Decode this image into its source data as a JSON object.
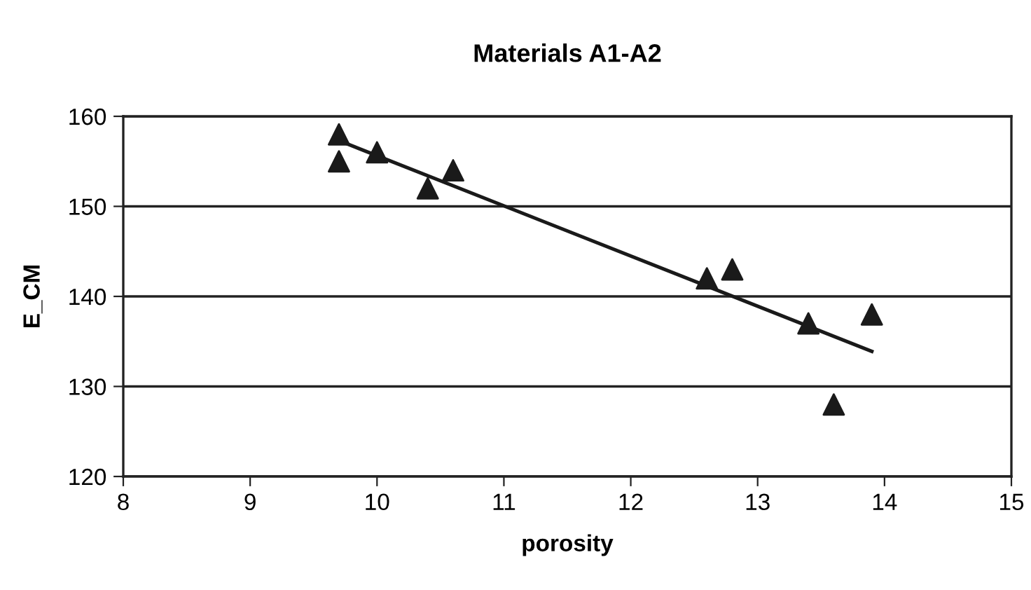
{
  "chart_data": {
    "type": "scatter",
    "title": "Materials A1-A2",
    "xlabel": "porosity",
    "ylabel": "E_CM",
    "xlim": [
      8,
      15
    ],
    "xticks": [
      8,
      9,
      10,
      11,
      12,
      13,
      14,
      15
    ],
    "ylim": [
      120,
      160
    ],
    "yticks": [
      120,
      130,
      140,
      150,
      160
    ],
    "grid": "y",
    "series": [
      {
        "color": "#1a1a1a",
        "marker": "triangle",
        "x": [
          9.7,
          9.7,
          10,
          10.4,
          10.6,
          12.6,
          12.8,
          13.4,
          13.6,
          13.9
        ],
        "values": [
          158,
          155,
          156,
          152,
          154,
          142,
          143,
          137,
          128,
          138
        ]
      },
      {
        "type": "line",
        "color": "#1a1a1a",
        "marker": "none",
        "line_style": "solid",
        "x": [
          9.7,
          13.9
        ],
        "values": [
          157.3,
          133.9
        ]
      }
    ]
  }
}
